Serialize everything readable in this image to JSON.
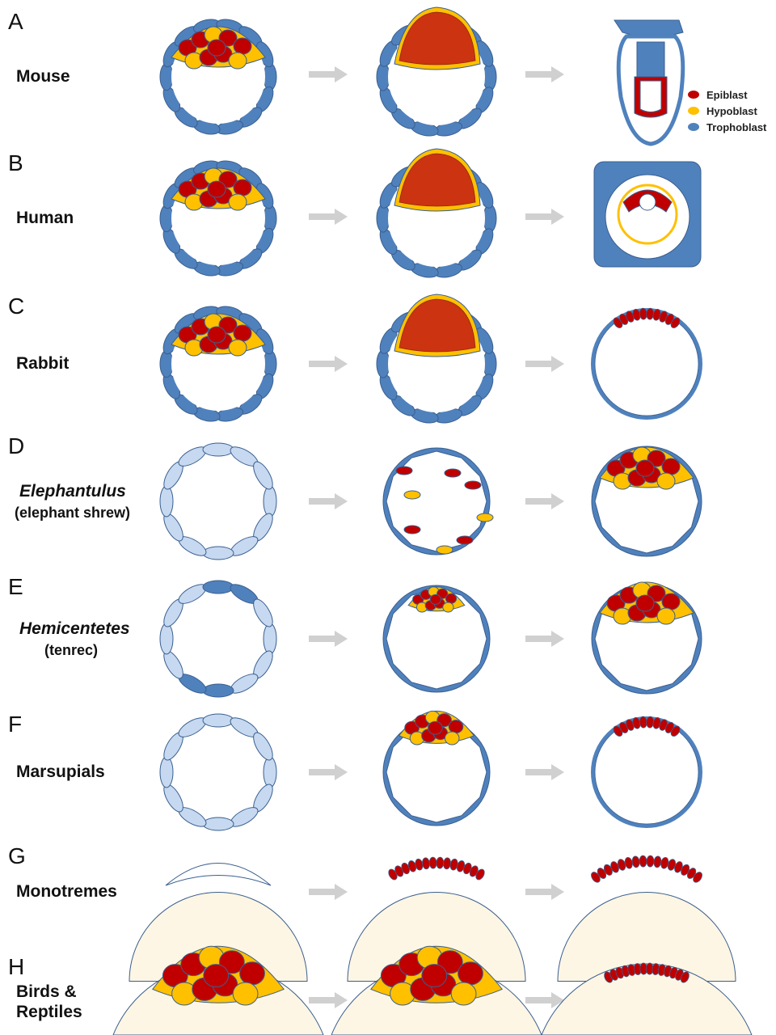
{
  "colors": {
    "epiblast": "#C00000",
    "epiblast_mass": "#CC3311",
    "hypoblast": "#FFC000",
    "trophoblast": "#4F81BD",
    "trophoblast_dark": "#2E5F9A",
    "light_cell": "#C6D9F1",
    "yolk": "#FEF6E4",
    "arrow": "#D0D0D0",
    "outline": "#3A5F8F"
  },
  "legend": {
    "epiblast": "Epiblast",
    "hypoblast": "Hypoblast",
    "trophoblast": "Trophoblast"
  },
  "panels": [
    {
      "letter": "A",
      "name": "Mouse",
      "italic": false,
      "sub": ""
    },
    {
      "letter": "B",
      "name": "Human",
      "italic": false,
      "sub": ""
    },
    {
      "letter": "C",
      "name": "Rabbit",
      "italic": false,
      "sub": ""
    },
    {
      "letter": "D",
      "name": "Elephantulus",
      "italic": true,
      "sub": "(elephant shrew)"
    },
    {
      "letter": "E",
      "name": "Hemicentetes",
      "italic": true,
      "sub": "(tenrec)"
    },
    {
      "letter": "F",
      "name": "Marsupials",
      "italic": false,
      "sub": ""
    },
    {
      "letter": "G",
      "name": "Monotremes",
      "italic": false,
      "sub": ""
    },
    {
      "letter": "H",
      "name": "Birds &",
      "italic": false,
      "sub": "Reptiles"
    }
  ]
}
